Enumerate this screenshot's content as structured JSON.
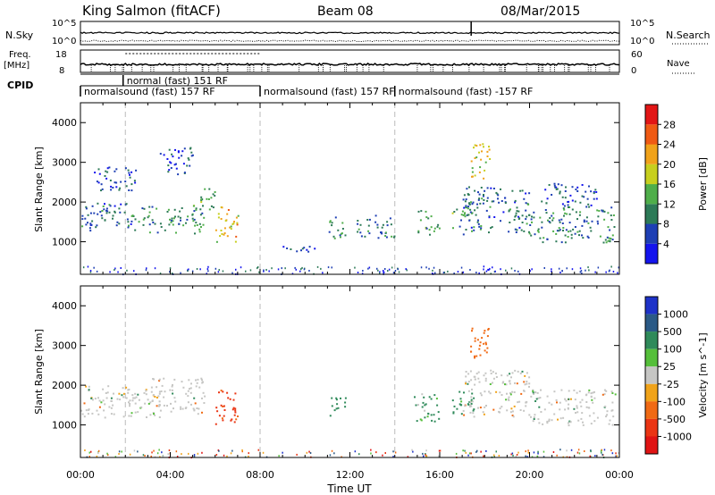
{
  "header": {
    "station": "King Salmon (fitACF)",
    "beam": "Beam 08",
    "date": "08/Mar/2015"
  },
  "strips": {
    "nsky_label": "N.Sky",
    "nsearch_label": "N.Search",
    "nsky_ticks": [
      "10^5",
      "10^0"
    ],
    "nsearch_ticks": [
      "10^5",
      "10^0"
    ],
    "freq_label": "Freq.",
    "freq_unit": "[MHz]",
    "freq_ticks": [
      "18",
      "8"
    ],
    "nave_label": "Nave",
    "nave_ticks": [
      "60",
      "0"
    ],
    "cpid_label": "CPID"
  },
  "cpid_segments": [
    {
      "label": "normal (fast) 151 RF",
      "start_h": 1.9,
      "end_h": 8.0,
      "row": 0
    },
    {
      "label": "normalsound (fast) 157 RF",
      "start_h": 0.0,
      "end_h": 8.0,
      "row": 1
    },
    {
      "label": "normalsound (fast) 157 RF",
      "start_h": 8.0,
      "end_h": 14.0,
      "row": 1
    },
    {
      "label": "normalsound (fast) -157 RF",
      "start_h": 14.0,
      "end_h": 24.0,
      "row": 1
    }
  ],
  "chart_data": [
    {
      "type": "heatmap",
      "title": "Power",
      "xlabel": "Time UT",
      "ylabel": "Slant Range [km]",
      "x_ticks": [
        "00:00",
        "04:00",
        "08:00",
        "12:00",
        "16:00",
        "20:00",
        "00:00"
      ],
      "xlim_hours": [
        0,
        24
      ],
      "ylim_km": [
        180,
        4500
      ],
      "y_ticks": [
        1000,
        2000,
        3000,
        4000
      ],
      "colorbar": {
        "label": "Power [dB]",
        "ticks": [
          "4",
          "8",
          "12",
          "16",
          "20",
          "24",
          "28"
        ],
        "colors": [
          "#1414ee",
          "#1e3fb4",
          "#2d7a57",
          "#4fae4a",
          "#c7cf1e",
          "#f0a21a",
          "#ef5a14",
          "#e21616"
        ]
      },
      "dashed_vlines_h": [
        2,
        8,
        14
      ],
      "echo_regions": [
        {
          "t": [
            0.0,
            3.0
          ],
          "r": [
            1300,
            2000
          ],
          "power": 8
        },
        {
          "t": [
            0.5,
            2.5
          ],
          "r": [
            2300,
            2900
          ],
          "power": 6
        },
        {
          "t": [
            3.0,
            5.5
          ],
          "r": [
            1200,
            1900
          ],
          "power": 11
        },
        {
          "t": [
            3.5,
            5.0
          ],
          "r": [
            2700,
            3400
          ],
          "power": 6
        },
        {
          "t": [
            5.0,
            6.0
          ],
          "r": [
            1800,
            2400
          ],
          "power": 12
        },
        {
          "t": [
            6.0,
            7.0
          ],
          "r": [
            1000,
            1900
          ],
          "power": 20
        },
        {
          "t": [
            8.8,
            10.5
          ],
          "r": [
            700,
            900
          ],
          "power": 5
        },
        {
          "t": [
            11.0,
            11.8
          ],
          "r": [
            1100,
            1700
          ],
          "power": 10
        },
        {
          "t": [
            12.3,
            14.0
          ],
          "r": [
            1100,
            1700
          ],
          "power": 9
        },
        {
          "t": [
            15.0,
            16.0
          ],
          "r": [
            1200,
            1800
          ],
          "power": 12
        },
        {
          "t": [
            16.5,
            17.5
          ],
          "r": [
            1300,
            2000
          ],
          "power": 12
        },
        {
          "t": [
            17.3,
            18.2
          ],
          "r": [
            2600,
            3500
          ],
          "power": 18
        },
        {
          "t": [
            17.0,
            20.0
          ],
          "r": [
            1200,
            2400
          ],
          "power": 8
        },
        {
          "t": [
            20.0,
            23.8
          ],
          "r": [
            1000,
            1900
          ],
          "power": 10
        },
        {
          "t": [
            20.5,
            23.0
          ],
          "r": [
            1900,
            2500
          ],
          "power": 7
        }
      ]
    },
    {
      "type": "heatmap",
      "title": "Velocity",
      "xlabel": "Time UT",
      "ylabel": "Slant Range [km]",
      "x_ticks": [
        "00:00",
        "04:00",
        "08:00",
        "12:00",
        "16:00",
        "20:00",
        "00:00"
      ],
      "xlim_hours": [
        0,
        24
      ],
      "ylim_km": [
        180,
        4500
      ],
      "y_ticks": [
        1000,
        2000,
        3000,
        4000
      ],
      "colorbar": {
        "label": "Velocity [m s^-1]",
        "ticks": [
          "1000",
          "500",
          "100",
          "25",
          "-25",
          "-100",
          "-500",
          "-1000"
        ],
        "colors": [
          "#1e32c8",
          "#2b5a86",
          "#2f8a5a",
          "#55bf3a",
          "#c6c6c4",
          "#f0a31a",
          "#f06a14",
          "#ea3514",
          "#e01414"
        ]
      },
      "ground_scatter_color": "#c6c6c4",
      "dashed_vlines_h": [
        2,
        8,
        14
      ],
      "echo_regions": [
        {
          "t": [
            0.0,
            3.5
          ],
          "r": [
            1200,
            2000
          ],
          "velocity": 0
        },
        {
          "t": [
            3.0,
            5.5
          ],
          "r": [
            1300,
            2200
          ],
          "velocity": 0
        },
        {
          "t": [
            6.0,
            7.0
          ],
          "r": [
            1000,
            1900
          ],
          "velocity": -600
        },
        {
          "t": [
            11.0,
            11.8
          ],
          "r": [
            1200,
            1700
          ],
          "velocity": 300
        },
        {
          "t": [
            14.8,
            16.0
          ],
          "r": [
            1100,
            1800
          ],
          "velocity": 200
        },
        {
          "t": [
            16.5,
            17.5
          ],
          "r": [
            1200,
            1900
          ],
          "velocity": 250
        },
        {
          "t": [
            17.3,
            18.2
          ],
          "r": [
            2600,
            3500
          ],
          "velocity": -300
        },
        {
          "t": [
            17.0,
            20.0
          ],
          "r": [
            1200,
            2400
          ],
          "velocity": 0
        },
        {
          "t": [
            20.0,
            23.8
          ],
          "r": [
            1000,
            1900
          ],
          "velocity": 0
        }
      ]
    }
  ]
}
